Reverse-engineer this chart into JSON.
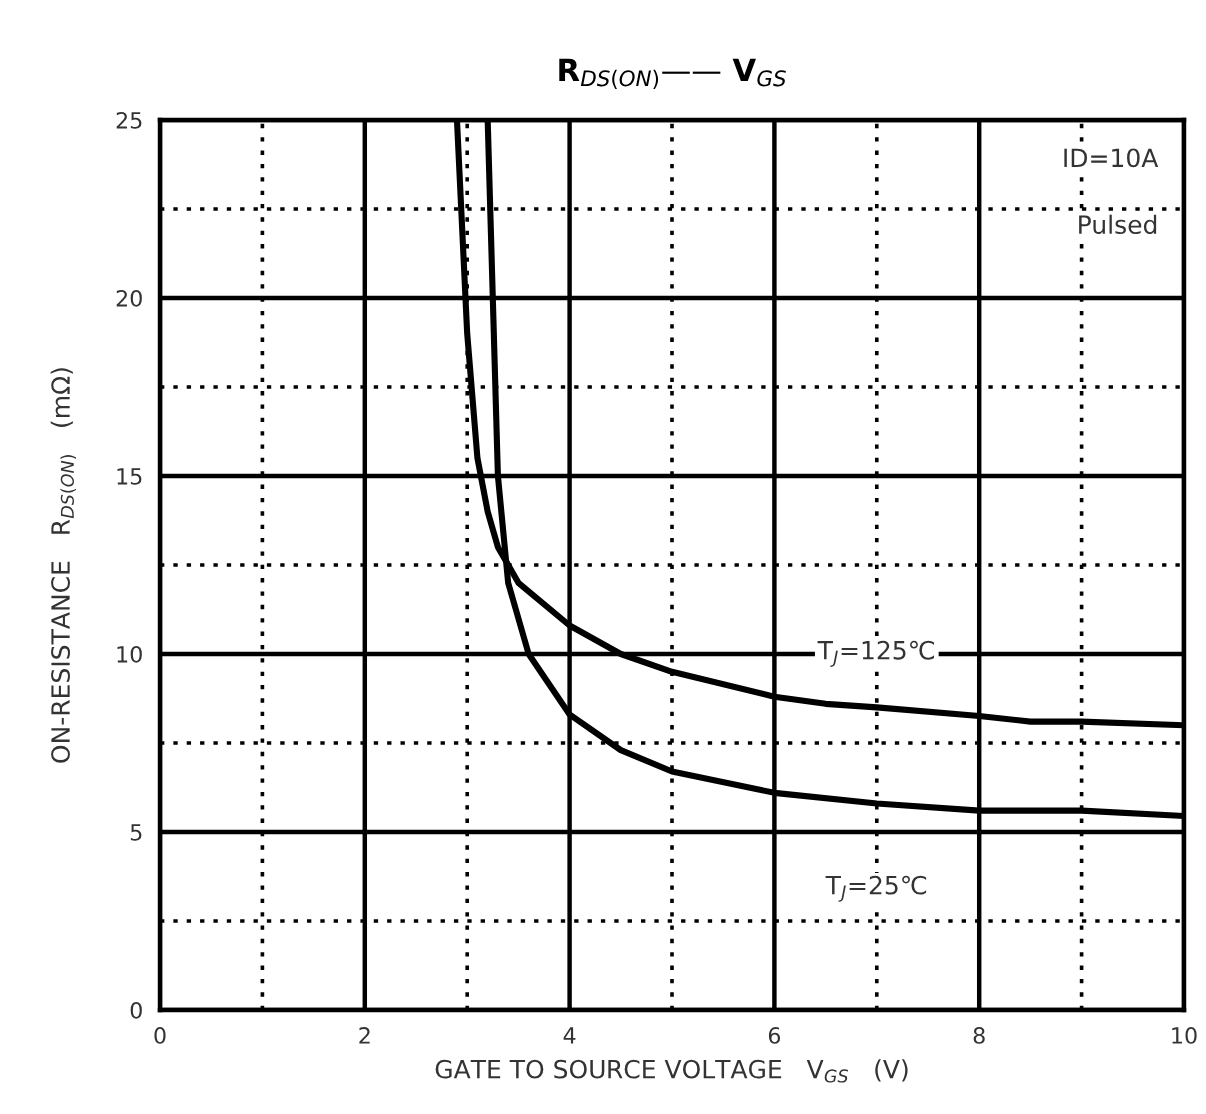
{
  "chart_data": {
    "type": "line",
    "title": "R$_{DS(ON)}$—— V$_{GS}$",
    "xlabel": "GATE TO SOURCE VOLTAGE   V$_{GS}$   (V)",
    "ylabel": "ON-RESISTANCE   R$_{DS(ON)}$   (mΩ)",
    "series": [
      {
        "color": "#000000",
        "x": [
          2.9,
          3.0,
          3.1,
          3.2,
          3.3,
          3.5,
          4.0,
          4.5,
          5.0,
          6.0,
          6.5,
          7.0,
          8.0,
          8.5,
          9.0,
          10.0
        ],
        "values": [
          25,
          19,
          15.5,
          14,
          13,
          12,
          10.8,
          10.0,
          9.5,
          8.8,
          8.6,
          8.5,
          8.26,
          8.1,
          8.1,
          8.0
        ]
      },
      {
        "color": "#000000",
        "x": [
          3.2,
          3.25,
          3.3,
          3.4,
          3.6,
          4.0,
          4.5,
          5.0,
          6.0,
          7.0,
          8.0,
          9.0,
          10.0
        ],
        "values": [
          25,
          20,
          15,
          12,
          10,
          8.3,
          7.3,
          6.7,
          6.1,
          5.8,
          5.6,
          5.6,
          5.45
        ]
      }
    ],
    "annotations": [
      "ID=10A",
      "Pulsed",
      "T$_{J}$=125℃",
      "T$_{J}$=25℃"
    ],
    "xlim": [
      0,
      10
    ],
    "xticks": [
      0,
      2,
      4,
      6,
      8,
      10
    ],
    "ylim": [
      0,
      25
    ],
    "yticks": [
      0,
      5,
      10,
      15,
      20,
      25
    ],
    "grid": true,
    "marker": "none",
    "line_style": "solid"
  }
}
